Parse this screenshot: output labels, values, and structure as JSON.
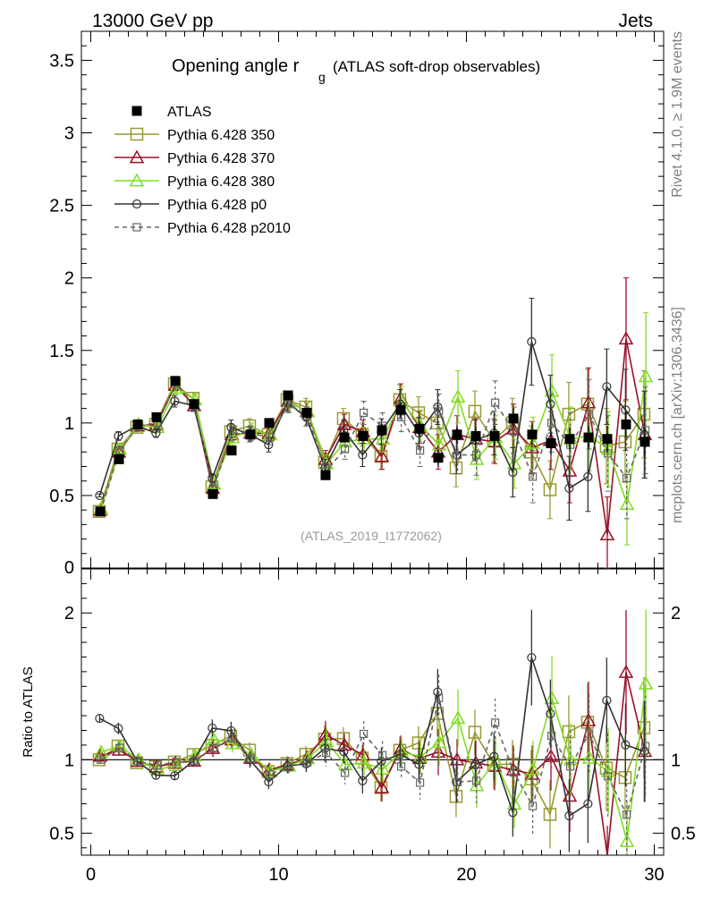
{
  "header": {
    "left": "13000 GeV pp",
    "right": "Jets"
  },
  "side_labels": {
    "top": "Rivet 4.1.0, ≥ 1.9M events",
    "bottom": "mcplots.cern.ch [arXiv:1306.3436]"
  },
  "chart_data": {
    "type": "line",
    "title_main": "Opening angle r",
    "title_sub": "g",
    "title_rest": "(ATLAS soft-drop observables)",
    "analysis_id": "(ATLAS_2019_I1772062)",
    "xlim": [
      -0.5,
      30.5
    ],
    "ylim": [
      0,
      3.7
    ],
    "y_ticks": [
      "0.5",
      "1",
      "1.5",
      "2",
      "2.5",
      "3",
      "3.5"
    ],
    "y_zero_label": "0",
    "x_ticks": [
      "0",
      "10",
      "20",
      "30"
    ],
    "ratio_ylabel": "Ratio to ATLAS",
    "ratio_ylim": [
      0.35,
      2.3
    ],
    "ratio_ticks": [
      "0.5",
      "1",
      "2"
    ],
    "x": [
      0.5,
      1.5,
      2.5,
      3.5,
      4.5,
      5.5,
      6.5,
      7.5,
      8.5,
      9.5,
      10.5,
      11.5,
      12.5,
      13.5,
      14.5,
      15.5,
      16.5,
      17.5,
      18.5,
      19.5,
      20.5,
      21.5,
      22.5,
      23.5,
      24.5,
      25.5,
      26.5,
      27.5,
      28.5,
      29.5
    ],
    "data": {
      "name": "ATLAS",
      "values": [
        0.39,
        0.75,
        0.99,
        1.04,
        1.29,
        1.13,
        0.51,
        0.81,
        0.92,
        1.0,
        1.19,
        1.07,
        0.64,
        0.9,
        0.91,
        0.95,
        1.09,
        0.96,
        0.76,
        0.92,
        0.91,
        0.91,
        1.03,
        0.92,
        0.86,
        0.89,
        0.9,
        0.89,
        0.99,
        0.87
      ],
      "errors": [
        0.01,
        0.02,
        0.02,
        0.02,
        0.02,
        0.02,
        0.01,
        0.02,
        0.02,
        0.02,
        0.02,
        0.03,
        0.03,
        0.03,
        0.04,
        0.04,
        0.05,
        0.05,
        0.06,
        0.06,
        0.06,
        0.07,
        0.07,
        0.08,
        0.08,
        0.08,
        0.08,
        0.09,
        0.09,
        0.1
      ]
    },
    "series": [
      {
        "name": "Pythia 6.428 350",
        "color": "#999933",
        "marker": "square",
        "dash": false,
        "values": [
          0.39,
          0.82,
          0.97,
          0.99,
          1.27,
          1.17,
          0.56,
          0.94,
          0.98,
          0.92,
          1.16,
          1.11,
          0.73,
          1.03,
          0.92,
          0.77,
          1.16,
          1.07,
          1.0,
          0.69,
          1.08,
          0.88,
          1.0,
          0.8,
          0.54,
          1.06,
          1.13,
          0.84,
          0.87,
          1.06
        ],
        "errors": [
          0.01,
          0.03,
          0.03,
          0.03,
          0.04,
          0.04,
          0.03,
          0.05,
          0.05,
          0.05,
          0.06,
          0.06,
          0.06,
          0.07,
          0.08,
          0.09,
          0.1,
          0.11,
          0.12,
          0.13,
          0.14,
          0.15,
          0.17,
          0.18,
          0.2,
          0.22,
          0.24,
          0.26,
          0.28,
          0.3
        ]
      },
      {
        "name": "Pythia 6.428 370",
        "color": "#99102a",
        "marker": "triangle",
        "dash": false,
        "values": [
          0.4,
          0.8,
          0.98,
          0.99,
          1.26,
          1.12,
          0.55,
          0.92,
          0.93,
          0.93,
          1.15,
          1.08,
          0.75,
          0.99,
          0.94,
          0.77,
          1.17,
          0.97,
          0.8,
          0.92,
          0.89,
          0.87,
          0.96,
          0.83,
          0.88,
          0.67,
          1.14,
          0.23,
          1.58,
          0.92
        ],
        "errors": [
          0.01,
          0.03,
          0.03,
          0.03,
          0.04,
          0.04,
          0.03,
          0.05,
          0.05,
          0.05,
          0.06,
          0.06,
          0.06,
          0.07,
          0.08,
          0.09,
          0.1,
          0.11,
          0.12,
          0.13,
          0.14,
          0.15,
          0.17,
          0.18,
          0.2,
          0.22,
          0.24,
          0.26,
          0.42,
          0.3
        ]
      },
      {
        "name": "Pythia 6.428 380",
        "color": "#99ff33",
        "stroke": "#80dd22",
        "marker": "triangle",
        "dash": false,
        "values": [
          0.41,
          0.82,
          0.99,
          0.97,
          1.24,
          1.16,
          0.58,
          0.9,
          0.95,
          0.92,
          1.14,
          1.08,
          0.72,
          0.87,
          0.89,
          0.89,
          1.15,
          0.98,
          0.85,
          1.18,
          0.75,
          0.9,
          0.72,
          0.86,
          1.22,
          0.89,
          0.91,
          0.82,
          0.44,
          1.32
        ],
        "errors": [
          0.01,
          0.03,
          0.03,
          0.03,
          0.04,
          0.04,
          0.03,
          0.05,
          0.05,
          0.05,
          0.06,
          0.06,
          0.06,
          0.07,
          0.08,
          0.09,
          0.1,
          0.11,
          0.12,
          0.18,
          0.14,
          0.15,
          0.17,
          0.18,
          0.25,
          0.22,
          0.24,
          0.26,
          0.28,
          0.44
        ]
      },
      {
        "name": "Pythia 6.428 p0",
        "color": "#333333",
        "marker": "circle",
        "dash": false,
        "values": [
          0.5,
          0.91,
          0.98,
          0.93,
          1.15,
          1.12,
          0.62,
          0.97,
          0.92,
          0.85,
          1.14,
          1.04,
          0.69,
          0.95,
          0.78,
          0.94,
          1.13,
          0.93,
          1.11,
          0.78,
          0.88,
          0.93,
          0.66,
          1.56,
          1.13,
          0.55,
          0.63,
          1.25,
          1.09,
          0.92
        ],
        "errors": [
          0.01,
          0.03,
          0.03,
          0.03,
          0.04,
          0.04,
          0.03,
          0.05,
          0.05,
          0.05,
          0.06,
          0.06,
          0.06,
          0.07,
          0.08,
          0.09,
          0.1,
          0.11,
          0.12,
          0.13,
          0.14,
          0.15,
          0.17,
          0.3,
          0.2,
          0.22,
          0.24,
          0.26,
          0.28,
          0.3
        ]
      },
      {
        "name": "Pythia 6.428 p2010",
        "color": "#666666",
        "marker": "square_small",
        "dash": true,
        "values": [
          0.39,
          0.81,
          0.98,
          1.0,
          1.27,
          1.12,
          0.55,
          0.93,
          0.93,
          0.9,
          1.13,
          1.05,
          0.67,
          0.82,
          1.07,
          0.98,
          1.04,
          0.81,
          1.08,
          0.78,
          0.78,
          1.14,
          0.94,
          0.63,
          1.0,
          0.85,
          1.06,
          0.79,
          0.62,
          0.95
        ],
        "errors": [
          0.01,
          0.03,
          0.03,
          0.03,
          0.04,
          0.04,
          0.03,
          0.05,
          0.05,
          0.05,
          0.06,
          0.06,
          0.06,
          0.07,
          0.08,
          0.09,
          0.1,
          0.11,
          0.12,
          0.13,
          0.14,
          0.15,
          0.17,
          0.18,
          0.2,
          0.22,
          0.24,
          0.26,
          0.28,
          0.3
        ]
      }
    ]
  }
}
